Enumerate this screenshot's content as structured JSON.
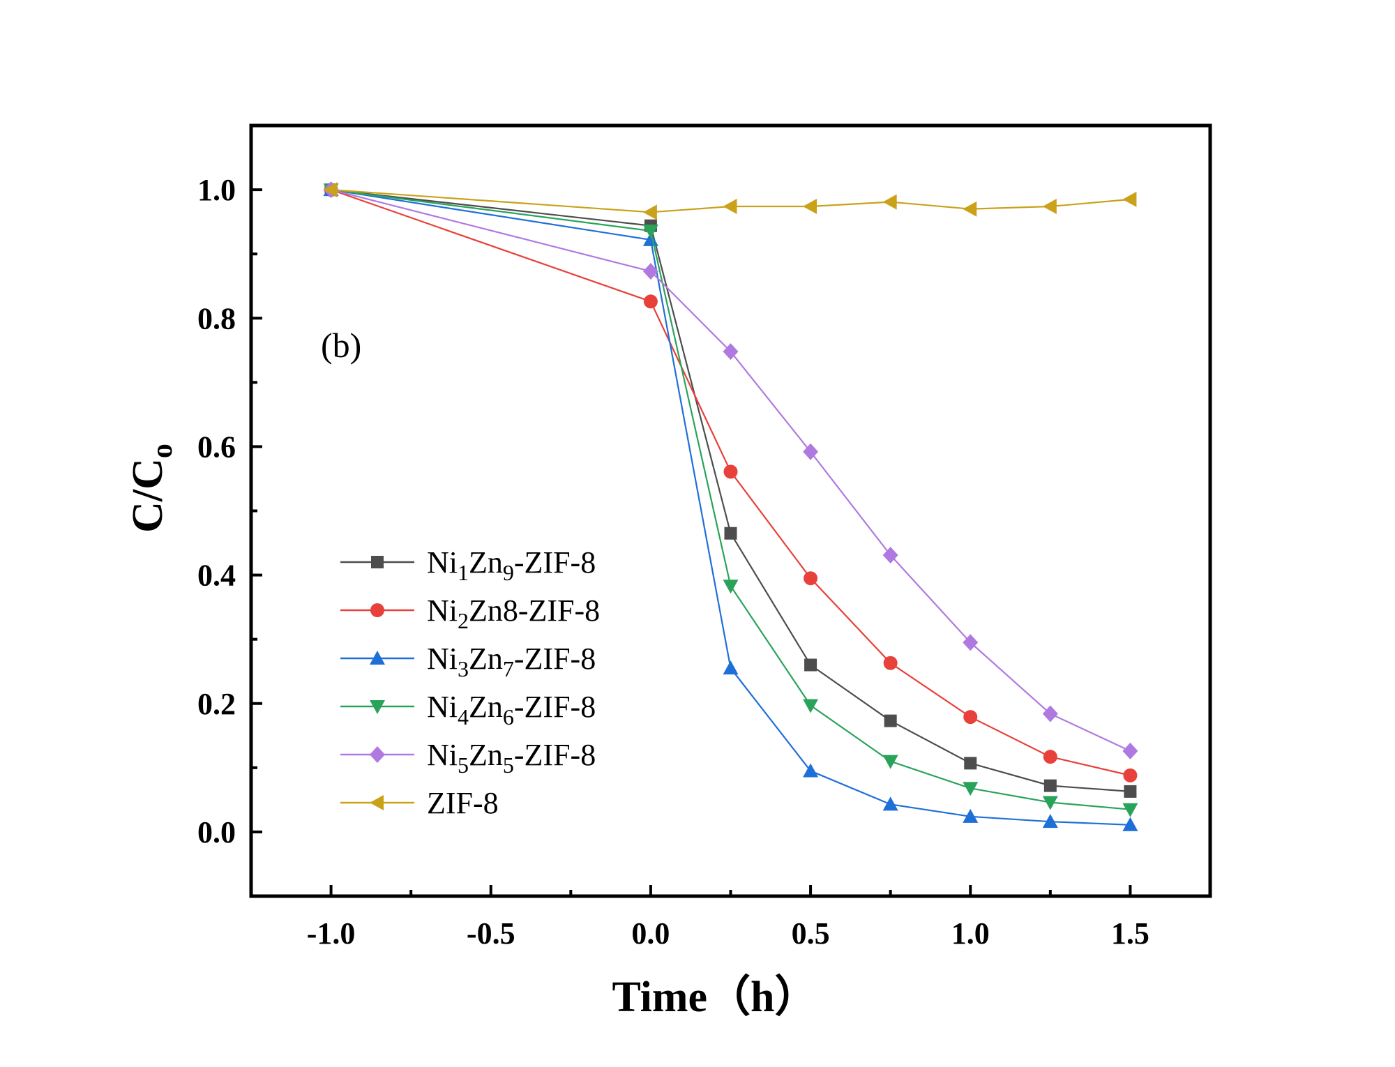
{
  "chart_data": {
    "type": "line",
    "title": "",
    "annotation": "(b)",
    "xlabel": "Time（h）",
    "ylabel_main": "C/C",
    "ylabel_sub": "o",
    "xlim": [
      -1.25,
      1.75
    ],
    "ylim": [
      -0.1,
      1.1
    ],
    "xticks": [
      -1.0,
      -0.5,
      0.0,
      0.5,
      1.0,
      1.5
    ],
    "xtick_labels": [
      "-1.0",
      "-0.5",
      "0.0",
      "0.5",
      "1.0",
      "1.5"
    ],
    "yticks": [
      0.0,
      0.2,
      0.4,
      0.6,
      0.8,
      1.0
    ],
    "ytick_labels": [
      "0.0",
      "0.2",
      "0.4",
      "0.6",
      "0.8",
      "1.0"
    ],
    "grid": false,
    "legend_position": "lower-left",
    "x": [
      -1.0,
      0.0,
      0.25,
      0.5,
      0.75,
      1.0,
      1.25,
      1.5
    ],
    "series": [
      {
        "name": "Ni1Zn9-ZIF-8",
        "legend_parts": [
          {
            "t": "Ni"
          },
          {
            "t": "1",
            "sub": true
          },
          {
            "t": "Zn"
          },
          {
            "t": "9",
            "sub": true
          },
          {
            "t": "-ZIF-8"
          }
        ],
        "color": "#4d4d4d",
        "marker": "square",
        "values": [
          1.0,
          0.944,
          0.465,
          0.26,
          0.173,
          0.107,
          0.072,
          0.063
        ]
      },
      {
        "name": "Ni2Zn8-ZIF-8",
        "legend_parts": [
          {
            "t": "Ni"
          },
          {
            "t": "2",
            "sub": true
          },
          {
            "t": "Zn8-ZIF-8"
          }
        ],
        "color": "#e8403a",
        "marker": "circle",
        "values": [
          1.0,
          0.826,
          0.561,
          0.395,
          0.263,
          0.179,
          0.117,
          0.088
        ]
      },
      {
        "name": "Ni3Zn7-ZIF-8",
        "legend_parts": [
          {
            "t": "Ni"
          },
          {
            "t": "3",
            "sub": true
          },
          {
            "t": "Zn"
          },
          {
            "t": "7",
            "sub": true
          },
          {
            "t": "-ZIF-8"
          }
        ],
        "color": "#1f6fd8",
        "marker": "triangle-up",
        "values": [
          1.0,
          0.922,
          0.255,
          0.095,
          0.043,
          0.024,
          0.016,
          0.011
        ]
      },
      {
        "name": "Ni4Zn6-ZIF-8",
        "legend_parts": [
          {
            "t": "Ni"
          },
          {
            "t": "4",
            "sub": true
          },
          {
            "t": "Zn"
          },
          {
            "t": "6",
            "sub": true
          },
          {
            "t": "-ZIF-8"
          }
        ],
        "color": "#2aa35a",
        "marker": "triangle-down",
        "values": [
          1.0,
          0.936,
          0.383,
          0.197,
          0.11,
          0.068,
          0.046,
          0.035
        ]
      },
      {
        "name": "Ni5Zn5-ZIF-8",
        "legend_parts": [
          {
            "t": "Ni"
          },
          {
            "t": "5",
            "sub": true
          },
          {
            "t": "Zn"
          },
          {
            "t": "5",
            "sub": true
          },
          {
            "t": "-ZIF-8"
          }
        ],
        "color": "#b079e0",
        "marker": "diamond",
        "values": [
          1.0,
          0.873,
          0.748,
          0.592,
          0.431,
          0.295,
          0.184,
          0.126
        ]
      },
      {
        "name": "ZIF-8",
        "legend_parts": [
          {
            "t": "ZIF-8"
          }
        ],
        "color": "#c9a21a",
        "marker": "triangle-left",
        "values": [
          1.0,
          0.965,
          0.974,
          0.974,
          0.981,
          0.97,
          0.974,
          0.985
        ]
      }
    ]
  }
}
